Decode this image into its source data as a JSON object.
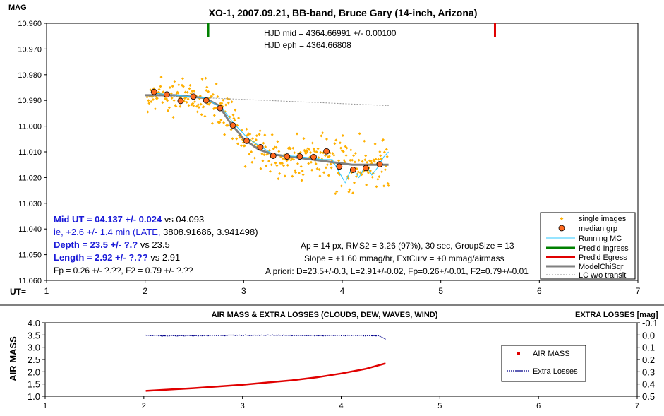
{
  "chart_data": [
    {
      "type": "scatter",
      "title": "XO-1, 2007.09.21, BB-band, Bruce Gary (14-inch, Arizona)",
      "ylabel": "MAG",
      "xlabel": "UT=",
      "xlim": [
        1,
        7
      ],
      "ylim": [
        11.06,
        10.96
      ],
      "x_ticks": [
        "1",
        "2",
        "3",
        "4",
        "5",
        "6",
        "7"
      ],
      "y_ticks": [
        "10.960",
        "10.970",
        "10.980",
        "10.990",
        "11.000",
        "11.010",
        "11.020",
        "11.030",
        "11.040",
        "11.050",
        "11.060"
      ],
      "annotations": {
        "hjd_mid": "HJD mid = 4364.66991 +/- 0.00100",
        "hjd_eph": "HJD eph = 4364.66808",
        "mid_ut_bold": "Mid UT = 04.137 +/- 0.024",
        "mid_ut_vs": " vs 04.093",
        "ie_line": "ie, +2.6 +/- 1.4 min (LATE, ",
        "ie_tail": "3808.91686, 3.941498)",
        "depth_bold": "Depth = 23.5 +/- ?.?",
        "depth_vs": " vs 23.5",
        "length_bold": "Length = 2.92 +/- ?.??",
        "length_vs": " vs 2.91",
        "fp_line": "Fp = 0.26 +/- ?.??, F2 = 0.79 +/- ?.??",
        "ap_line": "Ap = 14 px, RMS2 = 3.26 (97%), 30 sec, GroupSize = 13",
        "slope_line": "Slope = +1.60 mmag/hr, ExtCurv = +0 mmag/airmass",
        "apriori_line": "A priori: D=23.5+/-0.3, L=2.91+/-0.02, Fp=0.26+/-0.01, F2=0.79+/-0.01"
      },
      "legend_position": "bottom-right",
      "legend": [
        "single images",
        "median grp",
        "Running MC",
        "Pred'd Ingress",
        "Pred'd Egress",
        "ModelChiSqr",
        "LC w/o transit"
      ],
      "colors": {
        "single_images": "#ffb000",
        "median_fill": "#ff6a20",
        "running_mc": "#2ec8ff",
        "ingress": "#008000",
        "egress": "#e00000",
        "model": "#808080",
        "no_transit": "#909090"
      },
      "pred_ingress_x": 2.64,
      "pred_egress_x": 5.55,
      "median_grp": {
        "x": [
          2.09,
          2.22,
          2.36,
          2.49,
          2.62,
          2.76,
          2.89,
          3.03,
          3.17,
          3.3,
          3.44,
          3.57,
          3.71,
          3.84,
          3.97,
          4.11,
          4.24,
          4.38
        ],
        "y": [
          10.9867,
          10.9877,
          10.9902,
          10.9885,
          10.99,
          10.993,
          10.9997,
          11.0057,
          11.0082,
          11.0115,
          11.0118,
          11.0118,
          11.012,
          11.0098,
          11.0157,
          11.017,
          11.0163,
          11.0148
        ]
      },
      "model_chisqr": {
        "x": [
          2.0,
          2.3,
          2.6,
          2.75,
          2.85,
          3.0,
          3.15,
          3.3,
          3.5,
          3.7,
          3.9,
          4.1,
          4.3,
          4.47
        ],
        "y": [
          10.988,
          10.988,
          10.989,
          10.992,
          10.998,
          11.005,
          11.009,
          11.011,
          11.012,
          11.013,
          11.014,
          11.015,
          11.015,
          11.015
        ]
      },
      "running_mc": {
        "x": [
          2.05,
          2.3,
          2.6,
          2.78,
          2.9,
          3.05,
          3.3,
          3.6,
          3.8,
          3.9,
          3.97,
          4.03,
          4.1,
          4.17,
          4.24,
          4.3,
          4.36,
          4.42,
          4.47
        ],
        "y": [
          10.987,
          10.988,
          10.989,
          10.993,
          10.999,
          11.005,
          11.011,
          11.012,
          11.013,
          11.013,
          11.018,
          11.022,
          11.016,
          11.02,
          11.015,
          11.019,
          11.016,
          11.012,
          11.01
        ]
      },
      "lc_without_transit": {
        "x": [
          2.0,
          4.47
        ],
        "y": [
          10.988,
          10.992
        ]
      }
    },
    {
      "type": "line",
      "title": "AIR MASS & EXTRA LOSSES (CLOUDS, DEW, WAVES, WIND)",
      "ylabel": "AIR MASS",
      "y2label": "EXTRA LOSSES [mag]",
      "xlim": [
        1,
        7
      ],
      "ylim": [
        1.0,
        4.0
      ],
      "y2lim": [
        0.5,
        -0.1
      ],
      "x_ticks": [
        "1",
        "2",
        "3",
        "4",
        "5",
        "6",
        "7"
      ],
      "y_ticks": [
        "1.0",
        "1.5",
        "2.0",
        "2.5",
        "3.0",
        "3.5",
        "4.0"
      ],
      "y2_ticks": [
        "0.5",
        "0.4",
        "0.3",
        "0.2",
        "0.1",
        "0.0",
        "-0.1"
      ],
      "legend_position": "right",
      "series": [
        {
          "name": "AIR MASS",
          "color": "#e00000",
          "x": [
            2.02,
            2.5,
            3.0,
            3.5,
            3.75,
            4.0,
            4.25,
            4.45
          ],
          "y": [
            1.22,
            1.33,
            1.47,
            1.65,
            1.77,
            1.93,
            2.12,
            2.34
          ]
        },
        {
          "name": "Extra Losses",
          "color": "#00008b",
          "x": [
            2.02,
            2.2,
            2.5,
            2.8,
            3.0,
            3.3,
            3.6,
            3.9,
            4.2,
            4.38,
            4.42,
            4.45
          ],
          "y": [
            0.002,
            0.007,
            0.005,
            0.004,
            0.003,
            0.002,
            0.004,
            0.005,
            0.004,
            0.008,
            0.02,
            0.035
          ]
        }
      ]
    }
  ]
}
